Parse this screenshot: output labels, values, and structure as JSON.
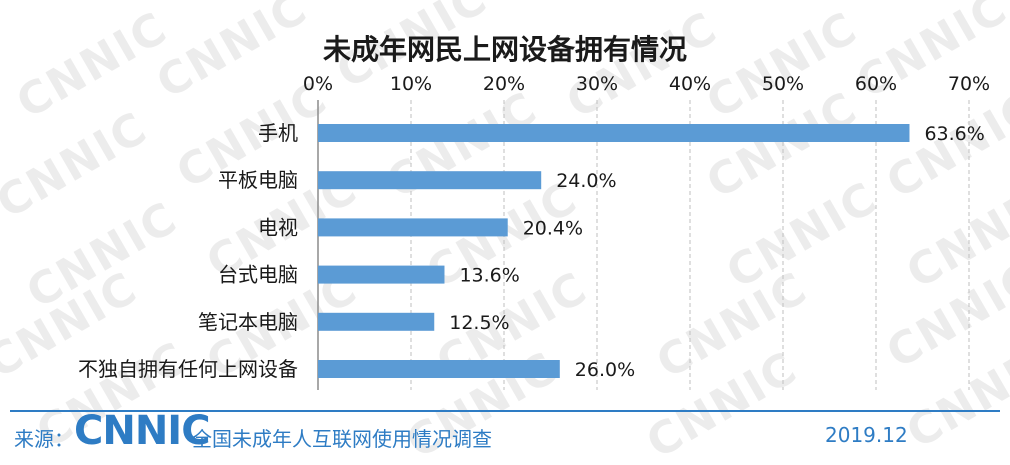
{
  "chart_data": {
    "type": "bar",
    "orientation": "horizontal",
    "title": "未成年网民上网设备拥有情况",
    "categories": [
      "手机",
      "平板电脑",
      "电视",
      "台式电脑",
      "笔记本电脑",
      "不独自拥有任何上网设备"
    ],
    "values": [
      63.6,
      24.0,
      20.4,
      13.6,
      12.5,
      26.0
    ],
    "value_labels": [
      "63.6%",
      "24.0%",
      "20.4%",
      "13.6%",
      "12.5%",
      "26.0%"
    ],
    "x_ticks": [
      "0%",
      "10%",
      "20%",
      "30%",
      "40%",
      "50%",
      "60%",
      "70%"
    ],
    "xlim": [
      0,
      70
    ],
    "x_axis_position": "top",
    "grid": "vertical dashed",
    "bar_color": "#5b9bd5"
  },
  "watermark": "CNNIC",
  "footer": {
    "source_label": "来源：",
    "logo_text": "CNNIC",
    "survey_name": "全国未成年人互联网使用情况调查",
    "date": "2019.12"
  }
}
